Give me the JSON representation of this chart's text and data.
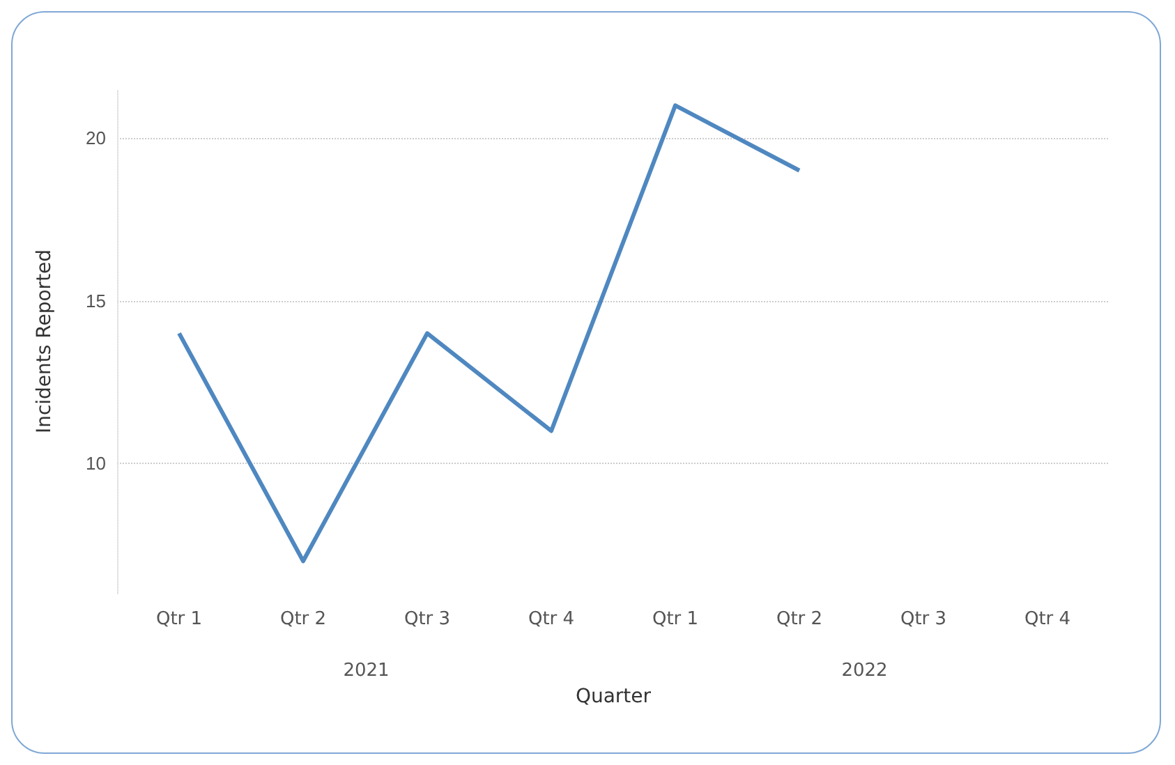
{
  "chart_data": {
    "type": "line",
    "xlabel": "Quarter",
    "ylabel": "Incidents Reported",
    "categories": [
      "Qtr 1",
      "Qtr 2",
      "Qtr 3",
      "Qtr 4",
      "Qtr 1",
      "Qtr 2",
      "Qtr 3",
      "Qtr 4"
    ],
    "annotations": [
      "2021",
      "2022"
    ],
    "series": [
      {
        "color": "#4f88c0",
        "values": [
          14,
          7,
          14,
          11,
          21,
          19,
          null,
          null
        ]
      }
    ],
    "ylim": [
      6,
      21.5
    ],
    "yticks": [
      10,
      15,
      20
    ],
    "grid": "y",
    "marker": "none",
    "line_style": "solid"
  }
}
